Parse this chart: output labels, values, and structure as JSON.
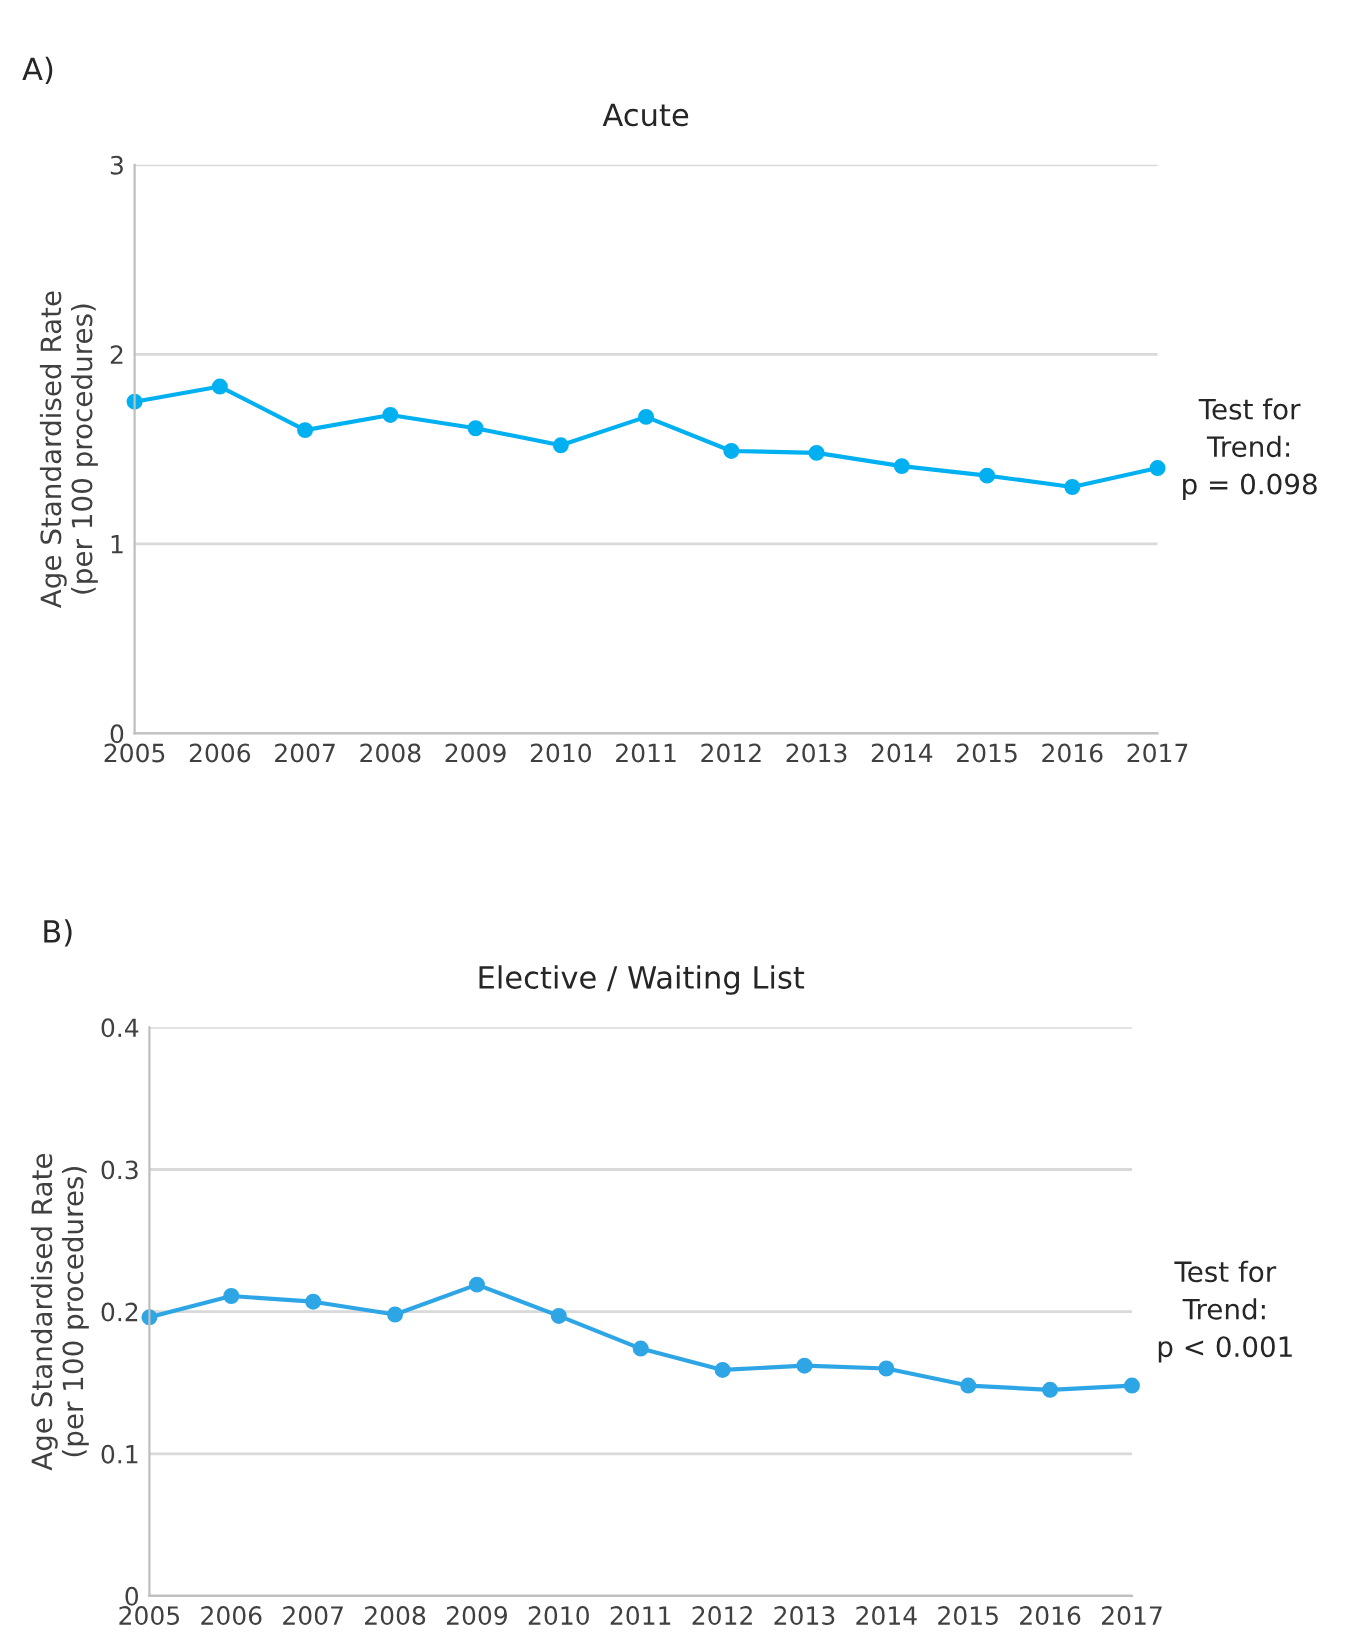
{
  "chart_data": [
    {
      "type": "line",
      "title": "Acute",
      "ylabel": "Age Standardised Rate\n(per 100 procedures)",
      "categories": [
        "2005",
        "2006",
        "2007",
        "2008",
        "2009",
        "2010",
        "2011",
        "2012",
        "2013",
        "2014",
        "2015",
        "2016",
        "2017"
      ],
      "series": [
        {
          "color": "#00b0f0",
          "values": [
            1.75,
            1.83,
            1.6,
            1.68,
            1.61,
            1.52,
            1.67,
            1.49,
            1.48,
            1.41,
            1.36,
            1.3,
            1.4
          ]
        }
      ],
      "ylim": [
        0,
        3
      ],
      "yticks": [
        0,
        1,
        2,
        3
      ],
      "grid": "y",
      "marker": "circle",
      "line_style": "solid",
      "annotations": [
        "A)",
        "Test for\nTrend:\np = 0.098"
      ]
    },
    {
      "type": "line",
      "title": "Elective / Waiting List",
      "ylabel": "Age Standardised Rate\n(per 100 procedures)",
      "categories": [
        "2005",
        "2006",
        "2007",
        "2008",
        "2009",
        "2010",
        "2011",
        "2012",
        "2013",
        "2014",
        "2015",
        "2016",
        "2017"
      ],
      "series": [
        {
          "color": "#2ea6e6",
          "values": [
            0.196,
            0.211,
            0.207,
            0.198,
            0.219,
            0.197,
            0.174,
            0.159,
            0.162,
            0.16,
            0.148,
            0.145,
            0.148
          ]
        }
      ],
      "ylim": [
        0,
        0.4
      ],
      "yticks": [
        0,
        0.1,
        0.2,
        0.3,
        0.4
      ],
      "grid": "y",
      "marker": "circle",
      "line_style": "solid",
      "annotations": [
        "B)",
        "Test for\nTrend:\np < 0.001"
      ]
    }
  ]
}
